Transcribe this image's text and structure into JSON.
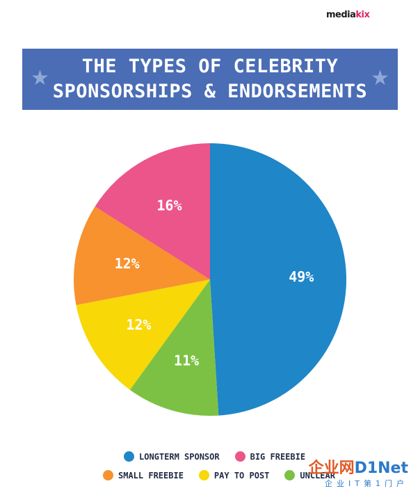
{
  "brand": {
    "name_a": "media",
    "name_b": "kix"
  },
  "banner": {
    "title_line1": "THE TYPES OF CELEBRITY",
    "title_line2": "SPONSORSHIPS & ENDORSEMENTS",
    "star_icon": "star-icon"
  },
  "colors": {
    "banner": "#4a6db5",
    "longterm_sponsor": "#1f86c8",
    "big_freebie": "#ec5589",
    "small_freebie": "#f7922f",
    "pay_to_post": "#f8d807",
    "unclear": "#7cc144"
  },
  "chart_data": {
    "type": "pie",
    "slices": [
      {
        "label": "LONGTERM SPONSOR",
        "value": 49,
        "display": "49%",
        "color": "#1f86c8"
      },
      {
        "label": "UNCLEAR",
        "value": 11,
        "display": "11%",
        "color": "#7cc144"
      },
      {
        "label": "PAY TO POST",
        "value": 12,
        "display": "12%",
        "color": "#f8d807"
      },
      {
        "label": "SMALL FREEBIE",
        "value": 12,
        "display": "12%",
        "color": "#f7922f"
      },
      {
        "label": "BIG FREEBIE",
        "value": 16,
        "display": "16%",
        "color": "#ec5589"
      }
    ],
    "start": "12 o'clock",
    "direction": "clockwise"
  },
  "legend": {
    "row1": [
      {
        "label": "LONGTERM SPONSOR",
        "color": "#1f86c8"
      },
      {
        "label": "BIG FREEBIE",
        "color": "#ec5589"
      }
    ],
    "row2": [
      {
        "label": "SMALL FREEBIE",
        "color": "#f7922f"
      },
      {
        "label": "PAY TO POST",
        "color": "#f8d807"
      },
      {
        "label": "UNCLEAR",
        "color": "#7cc144"
      }
    ]
  },
  "watermark": {
    "main_a": "企业网",
    "main_b": "D1Net",
    "sub": "企业IT第1门户"
  }
}
